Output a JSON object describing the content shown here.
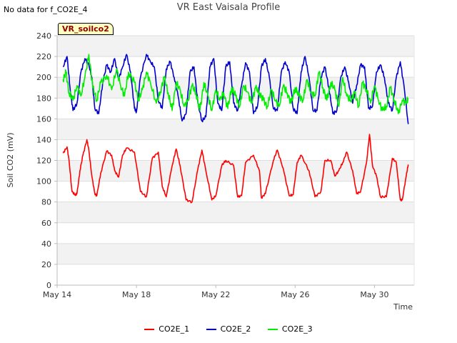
{
  "header": {
    "nodata_text": "No data for f_CO2E_4",
    "badge_label": "VR_soilco2"
  },
  "chart_data": {
    "type": "line",
    "title": "VR East Vaisala Profile",
    "xlabel": "Time",
    "ylabel": "Soil CO2 (mV)",
    "x_tick_labels": [
      "May 14",
      "May 18",
      "May 22",
      "May 26",
      "May 30"
    ],
    "x_tick_days": [
      14,
      18,
      22,
      26,
      30
    ],
    "xlim": [
      14,
      32
    ],
    "ylim": [
      0,
      240
    ],
    "y_ticks": [
      0,
      20,
      40,
      60,
      80,
      100,
      120,
      140,
      160,
      180,
      200,
      220,
      240
    ],
    "grid": true,
    "legend_position": "bottom",
    "series": [
      {
        "name": "CO2E_1",
        "color": "#ff0000",
        "x": [
          14.3,
          14.5,
          14.6,
          14.75,
          14.9,
          15.0,
          15.15,
          15.3,
          15.5,
          15.6,
          15.75,
          15.9,
          16.0,
          16.2,
          16.5,
          16.75,
          16.9,
          17.1,
          17.3,
          17.5,
          17.9,
          18.2,
          18.5,
          18.8,
          19.1,
          19.3,
          19.5,
          19.8,
          20.0,
          20.2,
          20.5,
          20.8,
          21.1,
          21.3,
          21.5,
          21.8,
          22.0,
          22.3,
          22.5,
          22.9,
          23.1,
          23.3,
          23.5,
          23.9,
          24.2,
          24.3,
          24.5,
          24.9,
          25.1,
          25.4,
          25.7,
          25.9,
          26.1,
          26.3,
          26.7,
          27.0,
          27.3,
          27.5,
          27.8,
          28.0,
          28.2,
          28.4,
          28.6,
          28.9,
          29.1,
          29.3,
          29.6,
          29.75,
          29.9,
          30.1,
          30.3,
          30.6,
          30.9,
          31.1,
          31.3
        ],
        "y": [
          127,
          133,
          120,
          90,
          87,
          88,
          110,
          125,
          140,
          130,
          105,
          88,
          86,
          108,
          129,
          125,
          110,
          104,
          125,
          132,
          128,
          90,
          85,
          122,
          128,
          95,
          85,
          115,
          131,
          115,
          82,
          80,
          112,
          130,
          110,
          82,
          86,
          115,
          120,
          115,
          85,
          86,
          118,
          125,
          110,
          84,
          88,
          120,
          130,
          112,
          86,
          87,
          118,
          125,
          110,
          85,
          90,
          120,
          120,
          105,
          110,
          118,
          128,
          110,
          88,
          90,
          118,
          145,
          115,
          105,
          85,
          85,
          122,
          118,
          82
        ],
        "tail_x": [
          31.4,
          31.6,
          31.7
        ],
        "tail_y": [
          82,
          105,
          116
        ]
      },
      {
        "name": "CO2E_2",
        "color": "#0000cc",
        "x": [
          14.3,
          14.5,
          14.65,
          14.8,
          15.0,
          15.2,
          15.4,
          15.6,
          15.75,
          15.9,
          16.1,
          16.3,
          16.5,
          16.7,
          16.9,
          17.1,
          17.3,
          17.5,
          17.7,
          17.9,
          18.0,
          18.2,
          18.5,
          18.7,
          18.9,
          19.1,
          19.3,
          19.5,
          19.7,
          19.9,
          20.1,
          20.3,
          20.5,
          20.7,
          20.9,
          21.1,
          21.3,
          21.5,
          21.7,
          21.9,
          22.1,
          22.3,
          22.5,
          22.7,
          22.9,
          23.1,
          23.3,
          23.5,
          23.7,
          23.9,
          24.1,
          24.3,
          24.5,
          24.7,
          24.9,
          25.1,
          25.3,
          25.5,
          25.7,
          25.9,
          26.1,
          26.3,
          26.5,
          26.7,
          26.9,
          27.1,
          27.3,
          27.5,
          27.7,
          27.9,
          28.1,
          28.3,
          28.5,
          28.7,
          28.9,
          29.1,
          29.3,
          29.5,
          29.7,
          29.9,
          30.1,
          30.3,
          30.5,
          30.7,
          30.9,
          31.1,
          31.3,
          31.5,
          31.7
        ],
        "y": [
          210,
          220,
          190,
          168,
          175,
          205,
          218,
          212,
          200,
          170,
          165,
          195,
          212,
          205,
          218,
          198,
          210,
          222,
          205,
          170,
          167,
          200,
          222,
          215,
          210,
          178,
          170,
          208,
          215,
          200,
          182,
          158,
          165,
          205,
          210,
          175,
          158,
          162,
          210,
          218,
          175,
          168,
          210,
          215,
          175,
          168,
          192,
          214,
          205,
          165,
          172,
          210,
          218,
          200,
          170,
          168,
          205,
          215,
          205,
          170,
          165,
          205,
          220,
          200,
          168,
          168,
          200,
          210,
          190,
          165,
          168,
          200,
          210,
          195,
          175,
          192,
          212,
          210,
          170,
          172,
          205,
          212,
          200,
          175,
          168,
          200,
          215,
          190,
          155
        ]
      },
      {
        "name": "CO2E_3",
        "color": "#00ee00",
        "x": [
          14.3,
          14.45,
          14.6,
          14.8,
          15.0,
          15.2,
          15.4,
          15.6,
          15.8,
          16.0,
          16.2,
          16.5,
          16.75,
          17.0,
          17.2,
          17.4,
          17.6,
          17.9,
          18.1,
          18.3,
          18.5,
          18.7,
          19.0,
          19.2,
          19.4,
          19.6,
          19.8,
          20.0,
          20.2,
          20.4,
          20.6,
          20.8,
          21.0,
          21.2,
          21.4,
          21.6,
          21.8,
          22.0,
          22.2,
          22.4,
          22.6,
          22.8,
          23.0,
          23.2,
          23.4,
          23.6,
          23.8,
          24.0,
          24.2,
          24.4,
          24.6,
          24.8,
          25.0,
          25.2,
          25.4,
          25.6,
          25.8,
          26.0,
          26.2,
          26.4,
          26.6,
          26.8,
          27.0,
          27.2,
          27.4,
          27.6,
          27.8,
          28.0,
          28.2,
          28.4,
          28.6,
          28.8,
          29.0,
          29.2,
          29.4,
          29.6,
          29.8,
          30.0,
          30.2,
          30.4,
          30.6,
          30.8,
          31.0,
          31.2,
          31.4,
          31.6,
          31.7
        ],
        "y": [
          198,
          205,
          185,
          178,
          192,
          182,
          200,
          222,
          190,
          178,
          195,
          202,
          188,
          208,
          192,
          182,
          205,
          195,
          178,
          188,
          205,
          195,
          175,
          186,
          200,
          185,
          168,
          195,
          188,
          172,
          178,
          192,
          185,
          168,
          195,
          182,
          168,
          188,
          178,
          185,
          170,
          190,
          182,
          172,
          192,
          186,
          175,
          190,
          185,
          178,
          172,
          188,
          178,
          172,
          192,
          185,
          175,
          190,
          182,
          178,
          198,
          185,
          182,
          205,
          190,
          178,
          195,
          188,
          172,
          200,
          182,
          178,
          185,
          172,
          195,
          188,
          175,
          192,
          178,
          168,
          172,
          190,
          178,
          165,
          178,
          175,
          180
        ]
      }
    ]
  }
}
